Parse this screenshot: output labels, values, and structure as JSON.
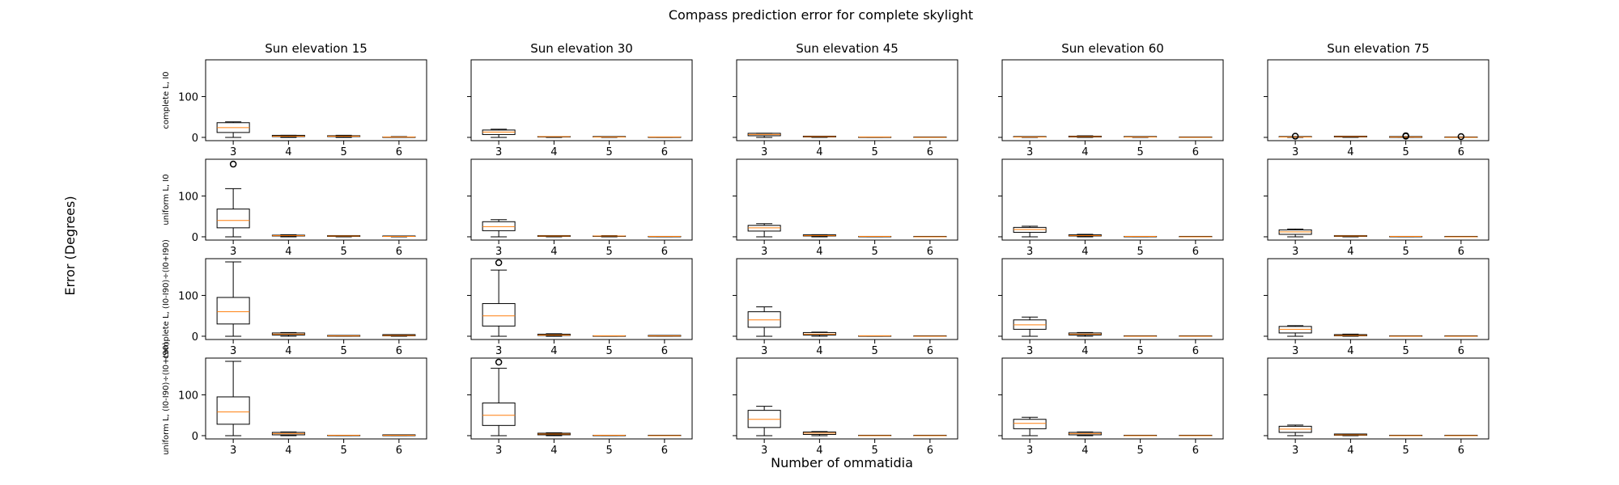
{
  "figure": {
    "suptitle": "Compass prediction error for complete skylight",
    "ylabel": "Error (Degrees)",
    "xlabel": "Number of ommatidia"
  },
  "chart_data": {
    "type": "box",
    "title": "Compass prediction error for complete skylight",
    "xlabel": "Number of ommatidia",
    "ylabel": "Error (Degrees)",
    "categories": [
      "3",
      "4",
      "5",
      "6"
    ],
    "ylim": [
      -8,
      190
    ],
    "yticks": [
      0,
      100
    ],
    "grid": false,
    "columns": [
      "Sun elevation 15",
      "Sun elevation 30",
      "Sun elevation 45",
      "Sun elevation 60",
      "Sun elevation 75"
    ],
    "rows": [
      "complete L, I0",
      "uniform L, I0",
      "complete L, (I0-I90)÷(I0+I90)",
      "uniform L, (I0-I90)÷(I0+I90)"
    ],
    "colors": {
      "box": "#000000",
      "median": "#ff7f0e",
      "flier": "#000000"
    },
    "panels": [
      [
        {
          "boxes": [
            {
              "whislo": 0,
              "q1": 12,
              "med": 24,
              "q3": 36,
              "whishi": 38,
              "fliers": []
            },
            {
              "whislo": 0,
              "q1": 2,
              "med": 3,
              "q3": 5,
              "whishi": 5,
              "fliers": []
            },
            {
              "whislo": 0,
              "q1": 2,
              "med": 3,
              "q3": 4,
              "whishi": 5,
              "fliers": []
            },
            {
              "whislo": 0,
              "q1": 0,
              "med": 1,
              "q3": 1,
              "whishi": 2,
              "fliers": []
            }
          ]
        },
        {
          "boxes": [
            {
              "whislo": 0,
              "q1": 7,
              "med": 13,
              "q3": 18,
              "whishi": 20,
              "fliers": []
            },
            {
              "whislo": 0,
              "q1": 1,
              "med": 2,
              "q3": 2,
              "whishi": 2,
              "fliers": []
            },
            {
              "whislo": 0,
              "q1": 1,
              "med": 1,
              "q3": 2,
              "whishi": 2,
              "fliers": []
            },
            {
              "whislo": 0,
              "q1": 0,
              "med": 1,
              "q3": 1,
              "whishi": 1,
              "fliers": []
            }
          ]
        },
        {
          "boxes": [
            {
              "whislo": 0,
              "q1": 4,
              "med": 7,
              "q3": 10,
              "whishi": 10,
              "fliers": []
            },
            {
              "whislo": 0,
              "q1": 1,
              "med": 2,
              "q3": 3,
              "whishi": 3,
              "fliers": []
            },
            {
              "whislo": 0,
              "q1": 0,
              "med": 1,
              "q3": 1,
              "whishi": 1,
              "fliers": []
            },
            {
              "whislo": 0,
              "q1": 0,
              "med": 0,
              "q3": 1,
              "whishi": 1,
              "fliers": []
            }
          ]
        },
        {
          "boxes": [
            {
              "whislo": 0,
              "q1": 1,
              "med": 1,
              "q3": 2,
              "whishi": 2,
              "fliers": []
            },
            {
              "whislo": 0,
              "q1": 1,
              "med": 2,
              "q3": 3,
              "whishi": 4,
              "fliers": []
            },
            {
              "whislo": 0,
              "q1": 1,
              "med": 1,
              "q3": 2,
              "whishi": 2,
              "fliers": []
            },
            {
              "whislo": 0,
              "q1": 0,
              "med": 0,
              "q3": 1,
              "whishi": 1,
              "fliers": []
            }
          ]
        },
        {
          "boxes": [
            {
              "whislo": 0,
              "q1": 1,
              "med": 1,
              "q3": 2,
              "whishi": 2,
              "fliers": [
                3
              ]
            },
            {
              "whislo": 0,
              "q1": 1,
              "med": 2,
              "q3": 3,
              "whishi": 3,
              "fliers": []
            },
            {
              "whislo": 0,
              "q1": 0,
              "med": 1,
              "q3": 2,
              "whishi": 2,
              "fliers": [
                3,
                4
              ]
            },
            {
              "whislo": 0,
              "q1": 0,
              "med": 0,
              "q3": 1,
              "whishi": 1,
              "fliers": [
                2
              ]
            }
          ]
        }
      ],
      [
        {
          "boxes": [
            {
              "whislo": 0,
              "q1": 22,
              "med": 40,
              "q3": 68,
              "whishi": 118,
              "fliers": [
                178
              ]
            },
            {
              "whislo": 0,
              "q1": 2,
              "med": 3,
              "q3": 4,
              "whishi": 5,
              "fliers": []
            },
            {
              "whislo": 0,
              "q1": 1,
              "med": 2,
              "q3": 3,
              "whishi": 3,
              "fliers": []
            },
            {
              "whislo": 0,
              "q1": 1,
              "med": 1,
              "q3": 2,
              "whishi": 2,
              "fliers": []
            }
          ]
        },
        {
          "boxes": [
            {
              "whislo": 0,
              "q1": 15,
              "med": 25,
              "q3": 37,
              "whishi": 42,
              "fliers": []
            },
            {
              "whislo": 0,
              "q1": 1,
              "med": 2,
              "q3": 3,
              "whishi": 3,
              "fliers": []
            },
            {
              "whislo": 0,
              "q1": 1,
              "med": 2,
              "q3": 2,
              "whishi": 3,
              "fliers": []
            },
            {
              "whislo": 0,
              "q1": 0,
              "med": 1,
              "q3": 1,
              "whishi": 1,
              "fliers": []
            }
          ]
        },
        {
          "boxes": [
            {
              "whislo": 0,
              "q1": 14,
              "med": 22,
              "q3": 28,
              "whishi": 32,
              "fliers": []
            },
            {
              "whislo": 0,
              "q1": 2,
              "med": 3,
              "q3": 5,
              "whishi": 5,
              "fliers": []
            },
            {
              "whislo": 0,
              "q1": 0,
              "med": 1,
              "q3": 1,
              "whishi": 1,
              "fliers": []
            },
            {
              "whislo": 0,
              "q1": 0,
              "med": 0,
              "q3": 1,
              "whishi": 1,
              "fliers": []
            }
          ]
        },
        {
          "boxes": [
            {
              "whislo": 0,
              "q1": 11,
              "med": 18,
              "q3": 23,
              "whishi": 26,
              "fliers": []
            },
            {
              "whislo": 0,
              "q1": 2,
              "med": 3,
              "q3": 5,
              "whishi": 6,
              "fliers": []
            },
            {
              "whislo": 0,
              "q1": 0,
              "med": 1,
              "q3": 1,
              "whishi": 1,
              "fliers": []
            },
            {
              "whislo": 0,
              "q1": 0,
              "med": 0,
              "q3": 1,
              "whishi": 1,
              "fliers": []
            }
          ]
        },
        {
          "boxes": [
            {
              "whislo": 0,
              "q1": 6,
              "med": 12,
              "q3": 17,
              "whishi": 19,
              "fliers": []
            },
            {
              "whislo": 0,
              "q1": 1,
              "med": 2,
              "q3": 3,
              "whishi": 3,
              "fliers": []
            },
            {
              "whislo": 0,
              "q1": 0,
              "med": 1,
              "q3": 1,
              "whishi": 1,
              "fliers": []
            },
            {
              "whislo": 0,
              "q1": 0,
              "med": 0,
              "q3": 1,
              "whishi": 1,
              "fliers": []
            }
          ]
        }
      ],
      [
        {
          "boxes": [
            {
              "whislo": 0,
              "q1": 30,
              "med": 60,
              "q3": 95,
              "whishi": 182,
              "fliers": []
            },
            {
              "whislo": 0,
              "q1": 3,
              "med": 5,
              "q3": 8,
              "whishi": 9,
              "fliers": []
            },
            {
              "whislo": 0,
              "q1": 0,
              "med": 1,
              "q3": 2,
              "whishi": 2,
              "fliers": []
            },
            {
              "whislo": 0,
              "q1": 1,
              "med": 2,
              "q3": 4,
              "whishi": 4,
              "fliers": []
            }
          ]
        },
        {
          "boxes": [
            {
              "whislo": 0,
              "q1": 25,
              "med": 50,
              "q3": 80,
              "whishi": 162,
              "fliers": [
                180
              ]
            },
            {
              "whislo": 0,
              "q1": 2,
              "med": 3,
              "q3": 5,
              "whishi": 6,
              "fliers": []
            },
            {
              "whislo": 0,
              "q1": 0,
              "med": 1,
              "q3": 1,
              "whishi": 1,
              "fliers": []
            },
            {
              "whislo": 0,
              "q1": 0,
              "med": 1,
              "q3": 2,
              "whishi": 2,
              "fliers": []
            }
          ]
        },
        {
          "boxes": [
            {
              "whislo": 0,
              "q1": 22,
              "med": 40,
              "q3": 60,
              "whishi": 72,
              "fliers": []
            },
            {
              "whislo": 0,
              "q1": 3,
              "med": 5,
              "q3": 9,
              "whishi": 10,
              "fliers": []
            },
            {
              "whislo": 0,
              "q1": 0,
              "med": 1,
              "q3": 1,
              "whishi": 1,
              "fliers": []
            },
            {
              "whislo": 0,
              "q1": 0,
              "med": 0,
              "q3": 1,
              "whishi": 1,
              "fliers": []
            }
          ]
        },
        {
          "boxes": [
            {
              "whislo": 0,
              "q1": 17,
              "med": 28,
              "q3": 40,
              "whishi": 47,
              "fliers": []
            },
            {
              "whislo": 0,
              "q1": 3,
              "med": 5,
              "q3": 8,
              "whishi": 9,
              "fliers": []
            },
            {
              "whislo": 0,
              "q1": 0,
              "med": 0,
              "q3": 1,
              "whishi": 1,
              "fliers": []
            },
            {
              "whislo": 0,
              "q1": 0,
              "med": 0,
              "q3": 1,
              "whishi": 1,
              "fliers": []
            }
          ]
        },
        {
          "boxes": [
            {
              "whislo": 0,
              "q1": 8,
              "med": 17,
              "q3": 24,
              "whishi": 26,
              "fliers": []
            },
            {
              "whislo": 0,
              "q1": 1,
              "med": 2,
              "q3": 4,
              "whishi": 5,
              "fliers": []
            },
            {
              "whislo": 0,
              "q1": 0,
              "med": 0,
              "q3": 1,
              "whishi": 1,
              "fliers": []
            },
            {
              "whislo": 0,
              "q1": 0,
              "med": 0,
              "q3": 1,
              "whishi": 1,
              "fliers": []
            }
          ]
        }
      ],
      [
        {
          "boxes": [
            {
              "whislo": 0,
              "q1": 28,
              "med": 58,
              "q3": 95,
              "whishi": 182,
              "fliers": []
            },
            {
              "whislo": 0,
              "q1": 2,
              "med": 5,
              "q3": 8,
              "whishi": 9,
              "fliers": []
            },
            {
              "whislo": 0,
              "q1": 0,
              "med": 1,
              "q3": 1,
              "whishi": 1,
              "fliers": []
            },
            {
              "whislo": 0,
              "q1": 0,
              "med": 1,
              "q3": 2,
              "whishi": 2,
              "fliers": []
            }
          ]
        },
        {
          "boxes": [
            {
              "whislo": 0,
              "q1": 25,
              "med": 50,
              "q3": 80,
              "whishi": 165,
              "fliers": [
                180
              ]
            },
            {
              "whislo": 0,
              "q1": 2,
              "med": 4,
              "q3": 6,
              "whishi": 7,
              "fliers": []
            },
            {
              "whislo": 0,
              "q1": 0,
              "med": 1,
              "q3": 1,
              "whishi": 1,
              "fliers": []
            },
            {
              "whislo": 0,
              "q1": 0,
              "med": 0,
              "q3": 1,
              "whishi": 1,
              "fliers": []
            }
          ]
        },
        {
          "boxes": [
            {
              "whislo": 0,
              "q1": 20,
              "med": 40,
              "q3": 62,
              "whishi": 72,
              "fliers": []
            },
            {
              "whislo": 0,
              "q1": 3,
              "med": 6,
              "q3": 9,
              "whishi": 10,
              "fliers": []
            },
            {
              "whislo": 0,
              "q1": 0,
              "med": 0,
              "q3": 1,
              "whishi": 1,
              "fliers": []
            },
            {
              "whislo": 0,
              "q1": 0,
              "med": 0,
              "q3": 1,
              "whishi": 1,
              "fliers": []
            }
          ]
        },
        {
          "boxes": [
            {
              "whislo": 0,
              "q1": 17,
              "med": 30,
              "q3": 40,
              "whishi": 45,
              "fliers": []
            },
            {
              "whislo": 0,
              "q1": 2,
              "med": 5,
              "q3": 8,
              "whishi": 9,
              "fliers": []
            },
            {
              "whislo": 0,
              "q1": 0,
              "med": 0,
              "q3": 1,
              "whishi": 1,
              "fliers": []
            },
            {
              "whislo": 0,
              "q1": 0,
              "med": 0,
              "q3": 1,
              "whishi": 1,
              "fliers": []
            }
          ]
        },
        {
          "boxes": [
            {
              "whislo": 0,
              "q1": 8,
              "med": 16,
              "q3": 23,
              "whishi": 26,
              "fliers": []
            },
            {
              "whislo": 0,
              "q1": 1,
              "med": 2,
              "q3": 4,
              "whishi": 4,
              "fliers": []
            },
            {
              "whislo": 0,
              "q1": 0,
              "med": 0,
              "q3": 1,
              "whishi": 1,
              "fliers": []
            },
            {
              "whislo": 0,
              "q1": 0,
              "med": 0,
              "q3": 1,
              "whishi": 1,
              "fliers": []
            }
          ]
        }
      ]
    ]
  }
}
